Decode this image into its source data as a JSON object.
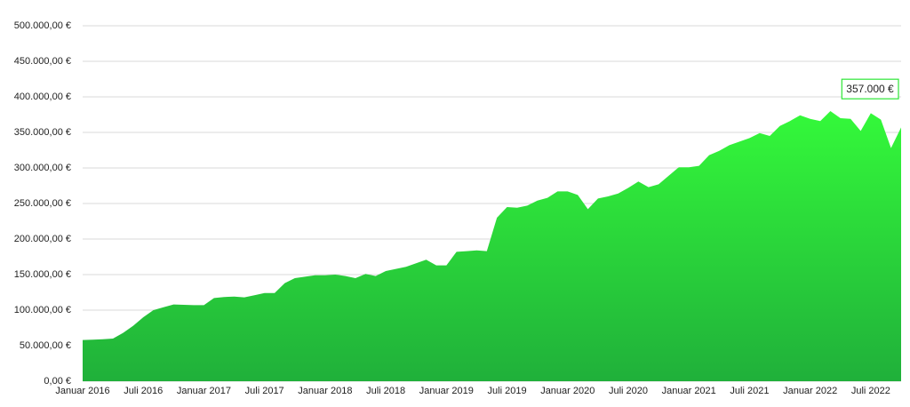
{
  "chart_data": {
    "type": "area",
    "categories": [
      "Januar 2016",
      null,
      null,
      null,
      null,
      null,
      "Juli 2016",
      null,
      null,
      null,
      null,
      null,
      "Januar 2017",
      null,
      null,
      null,
      null,
      null,
      "Juli 2017",
      null,
      null,
      null,
      null,
      null,
      "Januar 2018",
      null,
      null,
      null,
      null,
      null,
      "Juli 2018",
      null,
      null,
      null,
      null,
      null,
      "Januar 2019",
      null,
      null,
      null,
      null,
      null,
      "Juli 2019",
      null,
      null,
      null,
      null,
      null,
      "Januar 2020",
      null,
      null,
      null,
      null,
      null,
      "Juli 2020",
      null,
      null,
      null,
      null,
      null,
      "Januar 2021",
      null,
      null,
      null,
      null,
      null,
      "Juli 2021",
      null,
      null,
      null,
      null,
      null,
      "Januar 2022",
      null,
      null,
      null,
      null,
      null,
      "Juli 2022",
      null,
      null,
      null
    ],
    "values": [
      58000,
      58500,
      59000,
      60000,
      68000,
      78000,
      90000,
      100000,
      104000,
      108000,
      107500,
      107000,
      107000,
      117000,
      118500,
      119000,
      118000,
      121000,
      124000,
      124000,
      138000,
      145000,
      147000,
      149000,
      149000,
      150000,
      148000,
      145000,
      151000,
      148000,
      155000,
      158000,
      161000,
      166000,
      171000,
      163000,
      163000,
      182000,
      183000,
      184000,
      183000,
      230000,
      245000,
      244000,
      247000,
      254000,
      258000,
      267000,
      267000,
      262000,
      242000,
      257000,
      260000,
      264000,
      272000,
      281000,
      273000,
      277000,
      289000,
      301000,
      301000,
      303000,
      318000,
      324000,
      332000,
      337000,
      342000,
      349000,
      345000,
      359000,
      366000,
      374000,
      369000,
      366000,
      380000,
      370000,
      369000,
      352000,
      377000,
      368000,
      328000,
      357000
    ],
    "value_labels": [
      null,
      null,
      null,
      null,
      null,
      null,
      null,
      null,
      null,
      null,
      null,
      null,
      null,
      null,
      null,
      null,
      null,
      null,
      null,
      null,
      null,
      null,
      null,
      null,
      null,
      null,
      null,
      null,
      null,
      null,
      null,
      null,
      null,
      null,
      null,
      null,
      null,
      null,
      null,
      null,
      null,
      null,
      null,
      null,
      null,
      null,
      null,
      null,
      null,
      null,
      null,
      null,
      null,
      null,
      null,
      null,
      null,
      null,
      null,
      null,
      null,
      null,
      null,
      null,
      null,
      null,
      null,
      null,
      null,
      null,
      null,
      null,
      null,
      null,
      null,
      null,
      null,
      null,
      null,
      null,
      null,
      "357.000 €"
    ],
    "color": "#2de636",
    "ylim": [
      0,
      500000
    ],
    "yticks": [
      {
        "value": 0,
        "label": "0,00 €"
      },
      {
        "value": 50000,
        "label": "50.000,00 €"
      },
      {
        "value": 100000,
        "label": "100.000,00 €"
      },
      {
        "value": 150000,
        "label": "150.000,00 €"
      },
      {
        "value": 200000,
        "label": "200.000,00 €"
      },
      {
        "value": 250000,
        "label": "250.000,00 €"
      },
      {
        "value": 300000,
        "label": "300.000,00 €"
      },
      {
        "value": 350000,
        "label": "350.000,00 €"
      },
      {
        "value": 400000,
        "label": "400.000,00 €"
      },
      {
        "value": 450000,
        "label": "450.000,00 €"
      },
      {
        "value": 500000,
        "label": "500.000,00 €"
      }
    ],
    "grid": true
  }
}
